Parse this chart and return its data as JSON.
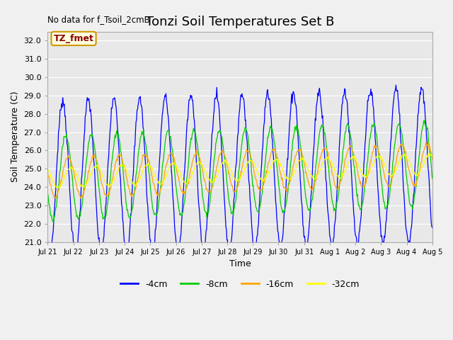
{
  "title": "Tonzi Soil Temperatures Set B",
  "xlabel": "Time",
  "ylabel": "Soil Temperature (C)",
  "no_data_text": "No data for f_Tsoil_2cmB",
  "tz_fmet_label": "TZ_fmet",
  "ylim": [
    21.0,
    32.5
  ],
  "yticks": [
    21.0,
    22.0,
    23.0,
    24.0,
    25.0,
    26.0,
    27.0,
    28.0,
    29.0,
    30.0,
    31.0,
    32.0
  ],
  "xtick_labels": [
    "Jul 21",
    "Jul 22",
    "Jul 23",
    "Jul 24",
    "Jul 25",
    "Jul 26",
    "Jul 27",
    "Jul 28",
    "Jul 29",
    "Jul 30",
    "Jul 31",
    "Aug 1",
    "Aug 2",
    "Aug 3",
    "Aug 4",
    "Aug 5"
  ],
  "colors": {
    "4cm": "#0000ff",
    "8cm": "#00cc00",
    "16cm": "#ffa500",
    "32cm": "#ffff00"
  },
  "legend_labels": [
    "-4cm",
    "-8cm",
    "-16cm",
    "-32cm"
  ],
  "fig_bg_color": "#f0f0f0",
  "plot_bg_color": "#e8e8e8",
  "grid_color": "#ffffff",
  "title_fontsize": 13,
  "label_fontsize": 9,
  "tick_fontsize": 8,
  "n_days": 15,
  "pts_per_day": 48,
  "base_temp": 24.5,
  "trend_per_day": 0.05,
  "amp_4cm": 4.2,
  "amp_8cm": 2.3,
  "amp_16cm": 1.1,
  "amp_32cm": 0.55,
  "lag_4cm": 0.0,
  "lag_8cm": 0.12,
  "lag_16cm": 0.22,
  "lag_32cm": 0.32
}
